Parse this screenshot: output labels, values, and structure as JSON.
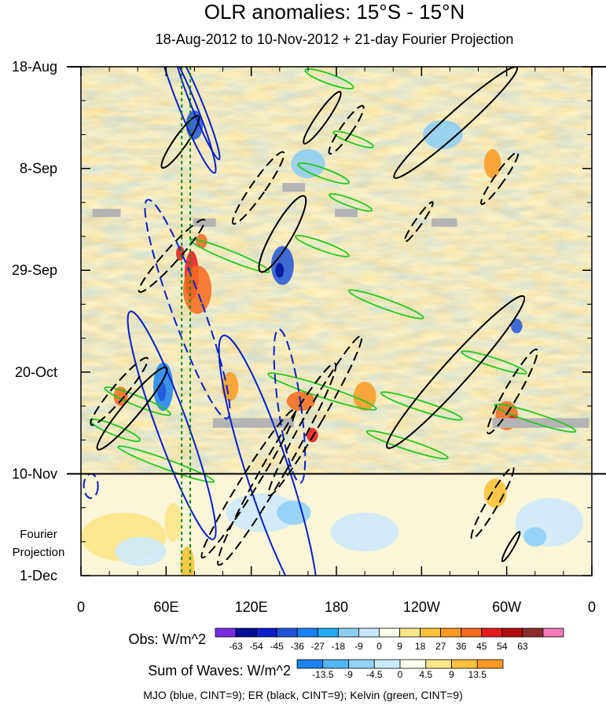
{
  "title": "OLR anomalies: 15°S - 15°N",
  "subtitle": "18-Aug-2012 to 10-Nov-2012 + 21-day Fourier Projection",
  "chart_data": {
    "type": "heatmap",
    "xaxis": {
      "tick_labels": [
        "0",
        "60E",
        "120E",
        "180",
        "120W",
        "60W",
        "0"
      ],
      "tick_lons": [
        0,
        60,
        120,
        180,
        240,
        300,
        360
      ],
      "range": [
        0,
        360
      ]
    },
    "yaxis": {
      "tick_labels": [
        "18-Aug",
        "8-Sep",
        "29-Sep",
        "20-Oct",
        "10-Nov",
        "1-Dec"
      ],
      "tick_days": [
        0,
        21,
        42,
        63,
        84,
        105
      ],
      "range": [
        0,
        105
      ]
    },
    "projection_start_label": "10-Nov",
    "projection_label": [
      "Fourier",
      "Projection"
    ],
    "obs_colorbar": {
      "label": "Obs: W/m^2",
      "levels": [
        "-63",
        "-54",
        "-45",
        "-36",
        "-27",
        "-18",
        "-9",
        "0",
        "9",
        "18",
        "27",
        "36",
        "45",
        "54",
        "63"
      ],
      "colors": [
        "#7a2be2",
        "#000e96",
        "#0a1fc8",
        "#1e55d8",
        "#1a82f0",
        "#22aaf2",
        "#8ccdf5",
        "#c8e8fa",
        "#fffff0",
        "#fde68a",
        "#fdc23a",
        "#fb9a22",
        "#f56a1e",
        "#e31a1c",
        "#b20c0c",
        "#8c2d2d",
        "#f47ab4"
      ]
    },
    "waves_colorbar": {
      "label": "Sum of Waves: W/m^2",
      "levels": [
        "-13.5",
        "-9",
        "-4.5",
        "0",
        "4.5",
        "9",
        "13.5"
      ],
      "colors": [
        "#1a82f0",
        "#52b6f4",
        "#8fd2f7",
        "#cdeafa",
        "#fffff0",
        "#fde68a",
        "#fdc23a",
        "#fb9a22"
      ]
    },
    "footnote": "MJO (blue, CINT=9); ER (black, CINT=9); Kelvin (green, CINT=9)",
    "mjo_index_lines_lon": [
      71,
      77
    ],
    "data_gaps": [
      {
        "lon": [
          8,
          28
        ],
        "day": [
          29.3,
          31.0
        ]
      },
      {
        "lon": [
          79,
          95
        ],
        "day": [
          31.3,
          33.0
        ]
      },
      {
        "lon": [
          142,
          158
        ],
        "day": [
          24.0,
          25.8
        ]
      },
      {
        "lon": [
          179,
          195
        ],
        "day": [
          29.3,
          31.0
        ]
      },
      {
        "lon": [
          247,
          265
        ],
        "day": [
          31.3,
          33.0
        ]
      },
      {
        "lon": [
          93,
          150
        ],
        "day": [
          72.5,
          74.5
        ]
      },
      {
        "lon": [
          290,
          358
        ],
        "day": [
          72.5,
          74.5
        ]
      }
    ],
    "waves": {
      "mjo_blue": [
        {
          "lon": 75,
          "day": 8,
          "rx": 6,
          "ry": 15,
          "rot": -22,
          "dash": false
        },
        {
          "lon": 82,
          "day": 8,
          "rx": 4,
          "ry": 12,
          "rot": -22,
          "dash": false
        },
        {
          "lon": 75,
          "day": 50,
          "rx": 11,
          "ry": 24,
          "rot": -20,
          "dash": true
        },
        {
          "lon": 64,
          "day": 74,
          "rx": 11,
          "ry": 25,
          "rot": -20,
          "dash": false
        },
        {
          "lon": 132,
          "day": 84,
          "rx": 15,
          "ry": 30,
          "rot": -18,
          "dash": false
        },
        {
          "lon": 147,
          "day": 70,
          "rx": 8,
          "ry": 16,
          "rot": -8,
          "dash": true
        },
        {
          "lon": 7,
          "day": 86.5,
          "rx": 5,
          "ry": 2.5,
          "rot": 0,
          "dash": true
        }
      ],
      "er_black": [
        {
          "lon": 142,
          "day": 34.5,
          "rx": 7,
          "ry": 9,
          "rot": 30,
          "dash": false
        },
        {
          "lon": 125,
          "day": 25,
          "rx": 5,
          "ry": 9,
          "rot": 35,
          "dash": true
        },
        {
          "lon": 170,
          "day": 10.5,
          "rx": 4,
          "ry": 6.5,
          "rot": 35,
          "dash": false
        },
        {
          "lon": 187,
          "day": 13,
          "rx": 4,
          "ry": 6,
          "rot": 35,
          "dash": true
        },
        {
          "lon": 264,
          "day": 11.5,
          "rx": 7,
          "ry": 17,
          "rot": 48,
          "dash": false
        },
        {
          "lon": 295,
          "day": 23,
          "rx": 3.5,
          "ry": 6.5,
          "rot": 35,
          "dash": true
        },
        {
          "lon": 264,
          "day": 63,
          "rx": 9,
          "ry": 21,
          "rot": 42,
          "dash": false
        },
        {
          "lon": 304,
          "day": 67,
          "rx": 5,
          "ry": 10,
          "rot": 30,
          "dash": true
        },
        {
          "lon": 238,
          "day": 32,
          "rx": 2.5,
          "ry": 5,
          "rot": 35,
          "dash": true
        },
        {
          "lon": 64,
          "day": 39,
          "rx": 5,
          "ry": 10,
          "rot": 42,
          "dash": true
        },
        {
          "lon": 36,
          "day": 70.5,
          "rx": 6,
          "ry": 11,
          "rot": 40,
          "dash": false
        },
        {
          "lon": 27,
          "day": 67,
          "rx": 5,
          "ry": 9,
          "rot": 40,
          "dash": true
        },
        {
          "lon": 70,
          "day": 15.5,
          "rx": 4.5,
          "ry": 6.5,
          "rot": 35,
          "dash": false
        },
        {
          "lon": 138,
          "day": 82,
          "rx": 8,
          "ry": 24,
          "rot": 30,
          "dash": true
        },
        {
          "lon": 165,
          "day": 72,
          "rx": 6,
          "ry": 19,
          "rot": 30,
          "dash": true
        },
        {
          "lon": 118,
          "day": 86,
          "rx": 6,
          "ry": 18,
          "rot": 32,
          "dash": true
        },
        {
          "lon": 290,
          "day": 90,
          "rx": 4,
          "ry": 8.5,
          "rot": 30,
          "dash": true
        },
        {
          "lon": 303,
          "day": 99,
          "rx": 2,
          "ry": 3.5,
          "rot": 30,
          "dash": false
        }
      ],
      "kelvin_green": [
        {
          "lon": 175,
          "day": 2.5,
          "len": 36,
          "wid": 1.0,
          "rot": 20
        },
        {
          "lon": 192,
          "day": 15,
          "len": 30,
          "wid": 0.8,
          "rot": 20
        },
        {
          "lon": 171,
          "day": 22,
          "len": 38,
          "wid": 1.0,
          "rot": 20
        },
        {
          "lon": 190,
          "day": 28,
          "len": 32,
          "wid": 0.8,
          "rot": 20
        },
        {
          "lon": 105,
          "day": 39,
          "len": 60,
          "wid": 1.0,
          "rot": 22
        },
        {
          "lon": 170,
          "day": 37,
          "len": 40,
          "wid": 0.9,
          "rot": 20
        },
        {
          "lon": 215,
          "day": 49,
          "len": 56,
          "wid": 1.0,
          "rot": 20
        },
        {
          "lon": 170,
          "day": 67,
          "len": 80,
          "wid": 1.2,
          "rot": 18
        },
        {
          "lon": 240,
          "day": 70,
          "len": 60,
          "wid": 1.0,
          "rot": 18
        },
        {
          "lon": 40,
          "day": 69,
          "len": 50,
          "wid": 1.0,
          "rot": 22
        },
        {
          "lon": 230,
          "day": 78,
          "len": 60,
          "wid": 1.0,
          "rot": 18
        },
        {
          "lon": 320,
          "day": 72.5,
          "len": 60,
          "wid": 1.0,
          "rot": 18
        },
        {
          "lon": 60,
          "day": 82,
          "len": 72,
          "wid": 1.0,
          "rot": 20
        },
        {
          "lon": 24,
          "day": 75,
          "len": 38,
          "wid": 1.0,
          "rot": 22
        },
        {
          "lon": 291,
          "day": 61,
          "len": 48,
          "wid": 0.9,
          "rot": 18
        }
      ]
    }
  }
}
